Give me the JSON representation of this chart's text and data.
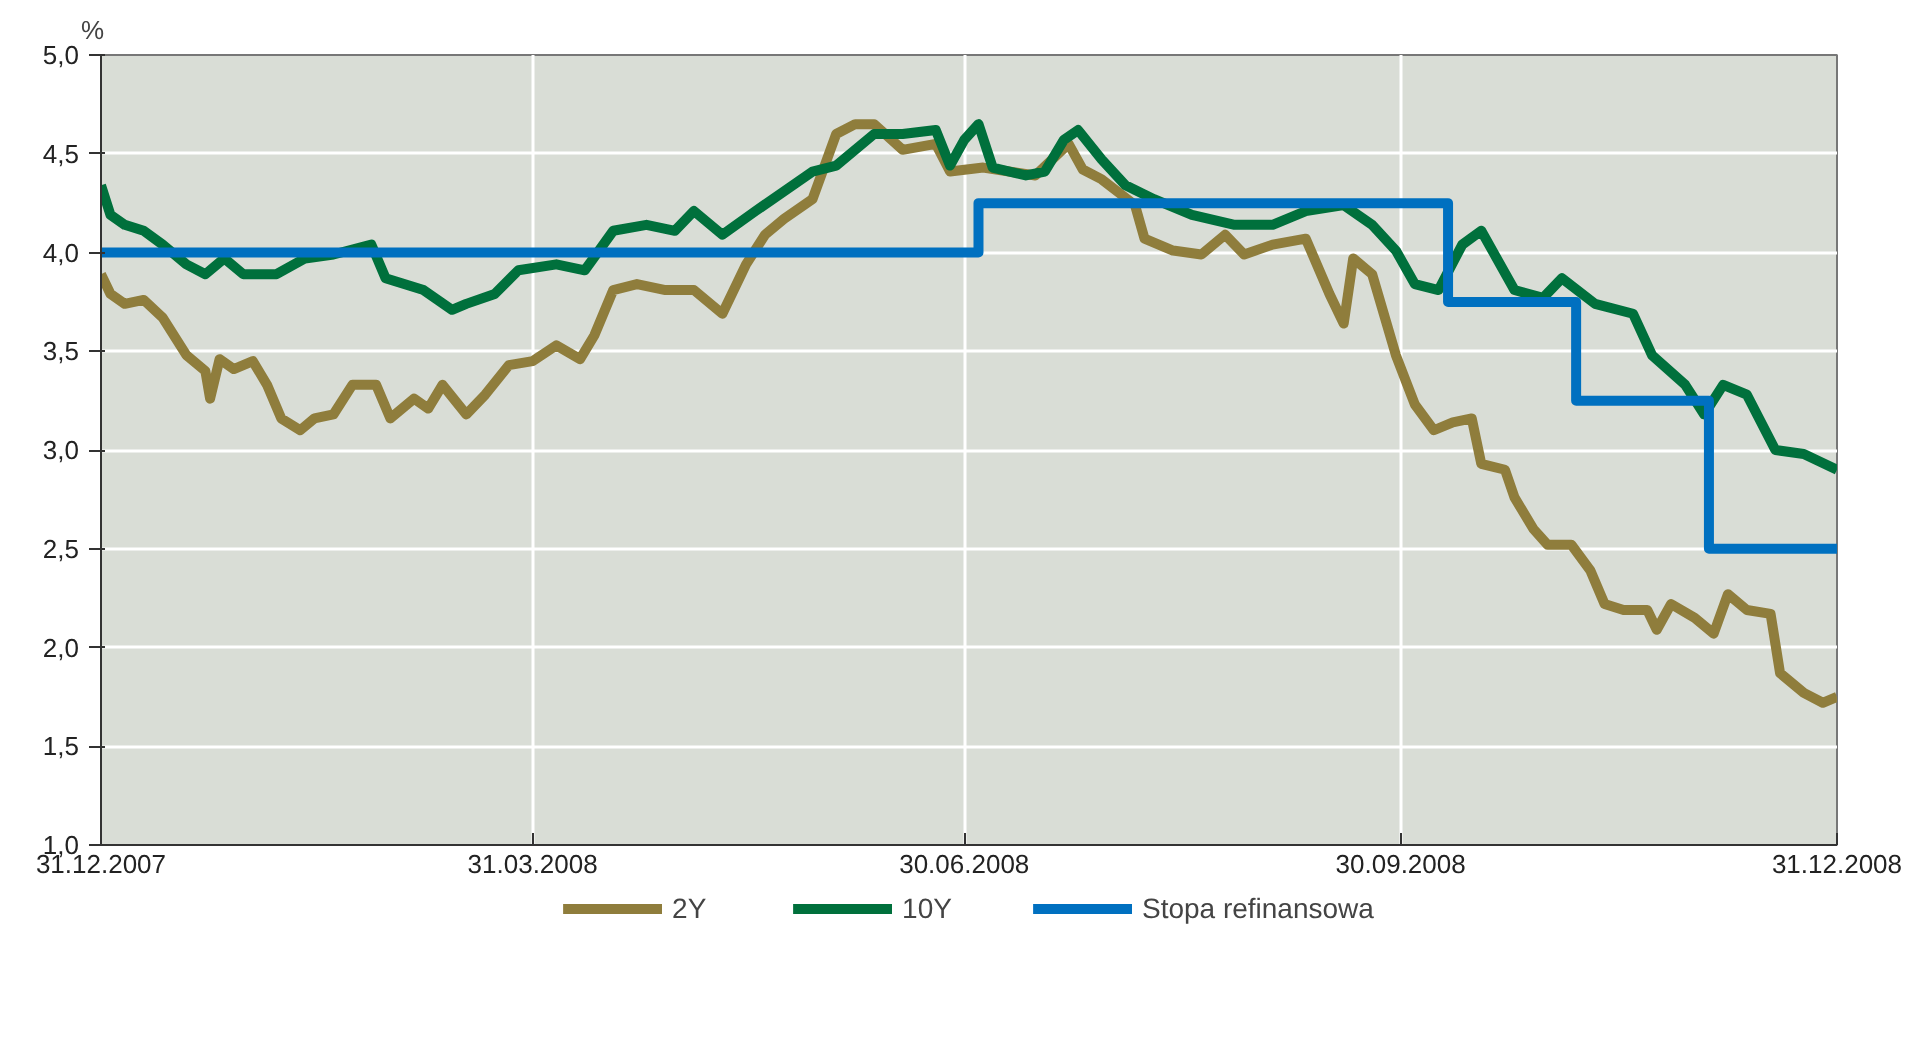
{
  "chart_data": {
    "type": "line",
    "ylabel": "%",
    "xlim": [
      "2007-12-31",
      "2008-12-31"
    ],
    "ylim": [
      1.0,
      5.0
    ],
    "xticks": [
      {
        "value": "2007-12-31",
        "label": "31.12.2007"
      },
      {
        "value": "2008-03-31",
        "label": "31.03.2008"
      },
      {
        "value": "2008-06-30",
        "label": "30.06.2008"
      },
      {
        "value": "2008-09-30",
        "label": "30.09.2008"
      },
      {
        "value": "2008-12-31",
        "label": "31.12.2008"
      }
    ],
    "yticks": [
      {
        "value": 1.0,
        "label": "1,0"
      },
      {
        "value": 1.5,
        "label": "1,5"
      },
      {
        "value": 2.0,
        "label": "2,0"
      },
      {
        "value": 2.5,
        "label": "2,5"
      },
      {
        "value": 3.0,
        "label": "3,0"
      },
      {
        "value": 3.5,
        "label": "3,5"
      },
      {
        "value": 4.0,
        "label": "4,0"
      },
      {
        "value": 4.5,
        "label": "4,5"
      },
      {
        "value": 5.0,
        "label": "5,0"
      }
    ],
    "grid": true,
    "legend": "bottom",
    "line_style": "solid",
    "series": [
      {
        "name": "2Y",
        "color": "#8f7d3c",
        "x": [
          "2007-12-31",
          "2008-01-02",
          "2008-01-05",
          "2008-01-09",
          "2008-01-13",
          "2008-01-18",
          "2008-01-22",
          "2008-01-23",
          "2008-01-25",
          "2008-01-28",
          "2008-02-01",
          "2008-02-04",
          "2008-02-07",
          "2008-02-11",
          "2008-02-14",
          "2008-02-18",
          "2008-02-22",
          "2008-02-27",
          "2008-03-01",
          "2008-03-06",
          "2008-03-09",
          "2008-03-12",
          "2008-03-17",
          "2008-03-21",
          "2008-03-26",
          "2008-03-31",
          "2008-04-05",
          "2008-04-10",
          "2008-04-13",
          "2008-04-17",
          "2008-04-22",
          "2008-04-28",
          "2008-05-04",
          "2008-05-10",
          "2008-05-15",
          "2008-05-19",
          "2008-05-23",
          "2008-05-29",
          "2008-06-03",
          "2008-06-07",
          "2008-06-11",
          "2008-06-17",
          "2008-06-24",
          "2008-06-27",
          "2008-07-04",
          "2008-07-15",
          "2008-07-22",
          "2008-07-25",
          "2008-07-29",
          "2008-08-05",
          "2008-08-07",
          "2008-08-13",
          "2008-08-19",
          "2008-08-24",
          "2008-08-28",
          "2008-09-03",
          "2008-09-10",
          "2008-09-15",
          "2008-09-18",
          "2008-09-20",
          "2008-09-24",
          "2008-09-29",
          "2008-10-03",
          "2008-10-07",
          "2008-10-11",
          "2008-10-15",
          "2008-10-17",
          "2008-10-22",
          "2008-10-24",
          "2008-10-28",
          "2008-10-31",
          "2008-11-05",
          "2008-11-09",
          "2008-11-12",
          "2008-11-16",
          "2008-11-21",
          "2008-11-23",
          "2008-11-26",
          "2008-12-01",
          "2008-12-05",
          "2008-12-08",
          "2008-12-12",
          "2008-12-17",
          "2008-12-19",
          "2008-12-24",
          "2008-12-28",
          "2008-12-31"
        ],
        "values": [
          3.89,
          3.79,
          3.74,
          3.76,
          3.67,
          3.48,
          3.4,
          3.26,
          3.46,
          3.41,
          3.45,
          3.33,
          3.16,
          3.1,
          3.16,
          3.18,
          3.33,
          3.33,
          3.16,
          3.26,
          3.21,
          3.33,
          3.18,
          3.28,
          3.43,
          3.45,
          3.53,
          3.46,
          3.58,
          3.81,
          3.84,
          3.81,
          3.81,
          3.69,
          3.94,
          4.09,
          4.17,
          4.27,
          4.6,
          4.65,
          4.65,
          4.52,
          4.55,
          4.41,
          4.43,
          4.39,
          4.55,
          4.42,
          4.37,
          4.24,
          4.07,
          4.01,
          3.99,
          4.09,
          3.99,
          4.04,
          4.07,
          3.79,
          3.64,
          3.97,
          3.89,
          3.48,
          3.23,
          3.1,
          3.14,
          3.16,
          2.93,
          2.9,
          2.76,
          2.6,
          2.52,
          2.52,
          2.39,
          2.22,
          2.19,
          2.19,
          2.09,
          2.22,
          2.15,
          2.07,
          2.27,
          2.19,
          2.17,
          1.87,
          1.77,
          1.72,
          1.75
        ]
      },
      {
        "name": "10Y",
        "color": "#00703c",
        "x": [
          "2007-12-31",
          "2008-01-02",
          "2008-01-05",
          "2008-01-09",
          "2008-01-13",
          "2008-01-18",
          "2008-01-22",
          "2008-01-26",
          "2008-01-30",
          "2008-02-06",
          "2008-02-12",
          "2008-02-18",
          "2008-02-26",
          "2008-02-29",
          "2008-03-08",
          "2008-03-14",
          "2008-03-17",
          "2008-03-23",
          "2008-03-28",
          "2008-04-05",
          "2008-04-11",
          "2008-04-17",
          "2008-04-24",
          "2008-04-30",
          "2008-05-04",
          "2008-05-10",
          "2008-05-17",
          "2008-05-23",
          "2008-05-29",
          "2008-06-03",
          "2008-06-11",
          "2008-06-17",
          "2008-06-24",
          "2008-06-27",
          "2008-06-30",
          "2008-07-03",
          "2008-07-06",
          "2008-07-13",
          "2008-07-17",
          "2008-07-21",
          "2008-07-24",
          "2008-07-29",
          "2008-08-03",
          "2008-08-09",
          "2008-08-17",
          "2008-08-26",
          "2008-09-03",
          "2008-09-10",
          "2008-09-18",
          "2008-09-24",
          "2008-09-29",
          "2008-10-03",
          "2008-10-08",
          "2008-10-13",
          "2008-10-17",
          "2008-10-24",
          "2008-10-30",
          "2008-11-03",
          "2008-11-10",
          "2008-11-18",
          "2008-11-22",
          "2008-11-29",
          "2008-12-03",
          "2008-12-07",
          "2008-12-12",
          "2008-12-18",
          "2008-12-24",
          "2008-12-31"
        ],
        "values": [
          4.34,
          4.19,
          4.14,
          4.11,
          4.04,
          3.94,
          3.89,
          3.97,
          3.89,
          3.89,
          3.97,
          3.99,
          4.04,
          3.87,
          3.81,
          3.71,
          3.74,
          3.79,
          3.91,
          3.94,
          3.91,
          4.11,
          4.14,
          4.11,
          4.21,
          4.09,
          4.21,
          4.31,
          4.41,
          4.44,
          4.6,
          4.6,
          4.62,
          4.44,
          4.57,
          4.65,
          4.43,
          4.39,
          4.41,
          4.57,
          4.62,
          4.47,
          4.34,
          4.27,
          4.19,
          4.14,
          4.14,
          4.21,
          4.24,
          4.14,
          4.01,
          3.84,
          3.81,
          4.04,
          4.11,
          3.81,
          3.77,
          3.87,
          3.74,
          3.69,
          3.48,
          3.33,
          3.18,
          3.33,
          3.28,
          3.0,
          2.98,
          2.9
        ]
      },
      {
        "name": "Stopa refinansowa",
        "color": "#0070c0",
        "type": "step",
        "x": [
          "2007-12-31",
          "2008-07-03",
          "2008-10-10",
          "2008-11-06",
          "2008-12-04",
          "2008-12-31"
        ],
        "values": [
          4.0,
          4.25,
          3.75,
          3.25,
          2.5,
          2.5
        ]
      }
    ]
  }
}
